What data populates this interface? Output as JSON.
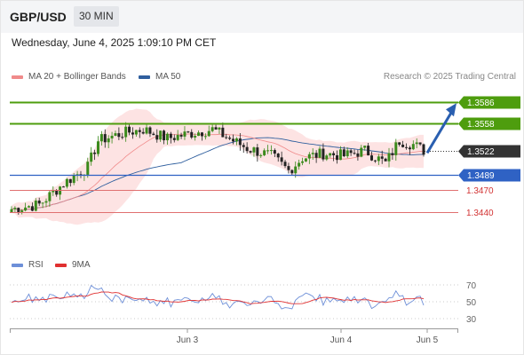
{
  "header": {
    "pair": "GBP/USD",
    "timeframe": "30 MIN",
    "datetime": "Wednesday, June 4, 2025 1:09:10 PM CET"
  },
  "legend": {
    "ma20": "MA 20 + Bollinger Bands",
    "ma50": "MA 50",
    "credit": "Research © 2025 Trading Central"
  },
  "levels": [
    {
      "value": "1.3586",
      "kind": "target"
    },
    {
      "value": "1.3558",
      "kind": "resistance"
    },
    {
      "value": "1.3522",
      "kind": "current"
    },
    {
      "value": "1.3489",
      "kind": "pivot"
    },
    {
      "value": "1.3470",
      "kind": "support"
    },
    {
      "value": "1.3440",
      "kind": "support"
    }
  ],
  "rsi_panel": {
    "legend_rsi": "RSI",
    "legend_ma": "9MA",
    "ticks": [
      "70",
      "50",
      "30"
    ]
  },
  "xaxis": {
    "labels": [
      "Jun 3",
      "Jun 4",
      "Jun 5"
    ]
  },
  "colors": {
    "resistance": "#4e9d0e",
    "pivot": "#2f62c4",
    "support": "#e07070",
    "current": "#333333",
    "ma20": "#f08a8a",
    "ma50": "#2f5f9e",
    "bollinger_fill": "#fde3e3",
    "candle_up": "#3a8a1c",
    "candle_down": "#222222",
    "rsi": "#6d8fd8",
    "rsi_ma": "#e03030"
  }
}
